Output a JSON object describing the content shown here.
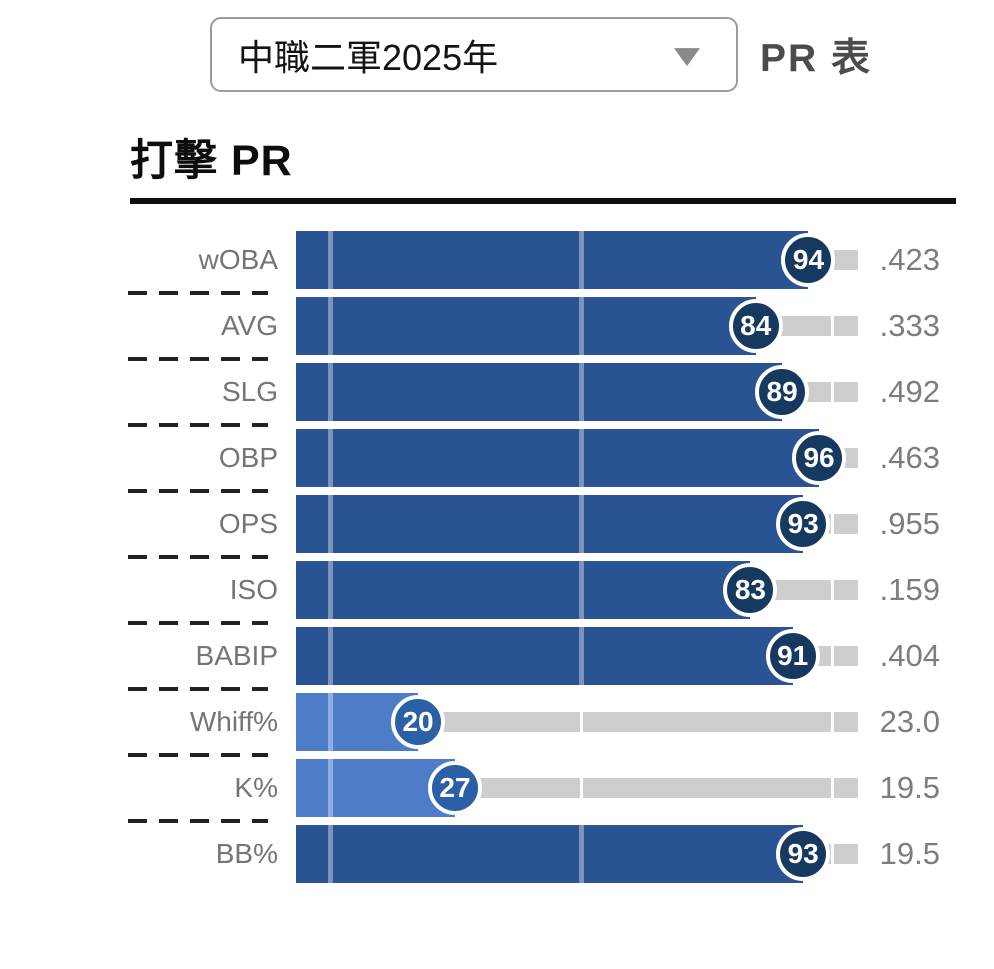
{
  "header": {
    "season_selector": {
      "value": "中職二軍2025年",
      "icon": "dropdown-arrow-icon"
    },
    "pr_table_label": "PR 表"
  },
  "section": {
    "title": "打擊 PR"
  },
  "chart_data": {
    "type": "bar",
    "orientation": "horizontal",
    "title": "打擊 PR",
    "percentile_axis_range": [
      0,
      100
    ],
    "reference_lines_percentile": [
      5,
      50,
      95
    ],
    "grid": false,
    "legend": "none",
    "categories": [
      "wOBA",
      "AVG",
      "SLG",
      "OBP",
      "OPS",
      "ISO",
      "BABIP",
      "Whiff%",
      "K%",
      "BB%"
    ],
    "rows": [
      {
        "label": "wOBA",
        "pr": 94,
        "value": ".423"
      },
      {
        "label": "AVG",
        "pr": 84,
        "value": ".333"
      },
      {
        "label": "SLG",
        "pr": 89,
        "value": ".492"
      },
      {
        "label": "OBP",
        "pr": 96,
        "value": ".463"
      },
      {
        "label": "OPS",
        "pr": 93,
        "value": ".955"
      },
      {
        "label": "ISO",
        "pr": 83,
        "value": ".159"
      },
      {
        "label": "BABIP",
        "pr": 91,
        "value": ".404"
      },
      {
        "label": "Whiff%",
        "pr": 20,
        "value": "23.0"
      },
      {
        "label": "K%",
        "pr": 27,
        "value": "19.5"
      },
      {
        "label": "BB%",
        "pr": 93,
        "value": "19.5"
      }
    ],
    "colors": {
      "bar_high": "#2a5394",
      "bar_low": "#4d7dc8",
      "badge_high": "#16395f",
      "badge_low": "#2b5fa6",
      "track": "#cecece",
      "reference_line": "#ffffff",
      "label_text": "#757575",
      "value_text": "#7d7d7d"
    }
  }
}
